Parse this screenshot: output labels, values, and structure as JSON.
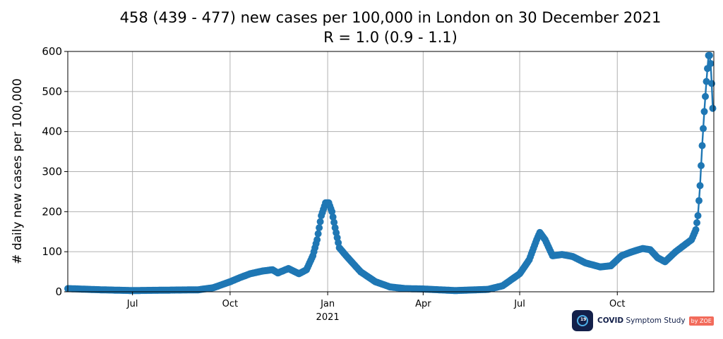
{
  "chart_data": {
    "type": "line",
    "title": "458 (439 - 477) new cases per 100,000 in London on 30 December 2021",
    "subtitle": "R = 1.0 (0.9 - 1.1)",
    "xlabel": "",
    "ylabel": "# daily new cases per 100,000",
    "ylim": [
      0,
      600
    ],
    "xlim": [
      "2020-05-01",
      "2021-12-31"
    ],
    "grid": true,
    "y_ticks": [
      "0",
      "100",
      "200",
      "300",
      "400",
      "500",
      "600"
    ],
    "x_ticks": [
      {
        "date": "2020-07-01",
        "label": "Jul",
        "sublabel": ""
      },
      {
        "date": "2020-10-01",
        "label": "Oct",
        "sublabel": ""
      },
      {
        "date": "2021-01-01",
        "label": "Jan",
        "sublabel": "2021"
      },
      {
        "date": "2021-04-01",
        "label": "Apr",
        "sublabel": ""
      },
      {
        "date": "2021-07-01",
        "label": "Jul",
        "sublabel": ""
      },
      {
        "date": "2021-10-01",
        "label": "Oct",
        "sublabel": ""
      }
    ],
    "color": "#1f77b4",
    "series": [
      {
        "points": [
          [
            "2020-05-01",
            8
          ],
          [
            "2020-06-01",
            5
          ],
          [
            "2020-07-01",
            3
          ],
          [
            "2020-08-01",
            4
          ],
          [
            "2020-09-01",
            5
          ],
          [
            "2020-09-15",
            10
          ],
          [
            "2020-10-01",
            25
          ],
          [
            "2020-10-10",
            35
          ],
          [
            "2020-10-20",
            45
          ],
          [
            "2020-11-01",
            52
          ],
          [
            "2020-11-10",
            55
          ],
          [
            "2020-11-15",
            47
          ],
          [
            "2020-11-25",
            58
          ],
          [
            "2020-12-05",
            45
          ],
          [
            "2020-12-12",
            55
          ],
          [
            "2020-12-18",
            90
          ],
          [
            "2020-12-22",
            130
          ],
          [
            "2020-12-26",
            190
          ],
          [
            "2020-12-30",
            222
          ],
          [
            "2021-01-02",
            222
          ],
          [
            "2021-01-05",
            200
          ],
          [
            "2021-01-08",
            160
          ],
          [
            "2021-01-12",
            110
          ],
          [
            "2021-01-20",
            85
          ],
          [
            "2021-02-01",
            50
          ],
          [
            "2021-02-15",
            25
          ],
          [
            "2021-03-01",
            12
          ],
          [
            "2021-03-15",
            8
          ],
          [
            "2021-04-01",
            7
          ],
          [
            "2021-05-01",
            3
          ],
          [
            "2021-06-01",
            6
          ],
          [
            "2021-06-15",
            15
          ],
          [
            "2021-07-01",
            45
          ],
          [
            "2021-07-10",
            80
          ],
          [
            "2021-07-17",
            130
          ],
          [
            "2021-07-20",
            148
          ],
          [
            "2021-07-25",
            130
          ],
          [
            "2021-08-01",
            90
          ],
          [
            "2021-08-10",
            93
          ],
          [
            "2021-08-20",
            88
          ],
          [
            "2021-09-01",
            72
          ],
          [
            "2021-09-15",
            62
          ],
          [
            "2021-09-25",
            65
          ],
          [
            "2021-10-05",
            90
          ],
          [
            "2021-10-15",
            100
          ],
          [
            "2021-10-25",
            108
          ],
          [
            "2021-11-01",
            105
          ],
          [
            "2021-11-08",
            85
          ],
          [
            "2021-11-15",
            75
          ],
          [
            "2021-11-25",
            100
          ],
          [
            "2021-12-05",
            120
          ],
          [
            "2021-12-10",
            130
          ],
          [
            "2021-12-14",
            155
          ],
          [
            "2021-12-16",
            190
          ],
          [
            "2021-12-18",
            265
          ],
          [
            "2021-12-20",
            365
          ],
          [
            "2021-12-22",
            450
          ],
          [
            "2021-12-24",
            525
          ],
          [
            "2021-12-26",
            590
          ],
          [
            "2021-12-27",
            590
          ],
          [
            "2021-12-28",
            570
          ],
          [
            "2021-12-29",
            520
          ],
          [
            "2021-12-30",
            458
          ]
        ]
      }
    ]
  },
  "logo": {
    "badge": "19",
    "name_bold": "COVID",
    "name_rest": " Symptom Study",
    "by": "by ZOE"
  }
}
